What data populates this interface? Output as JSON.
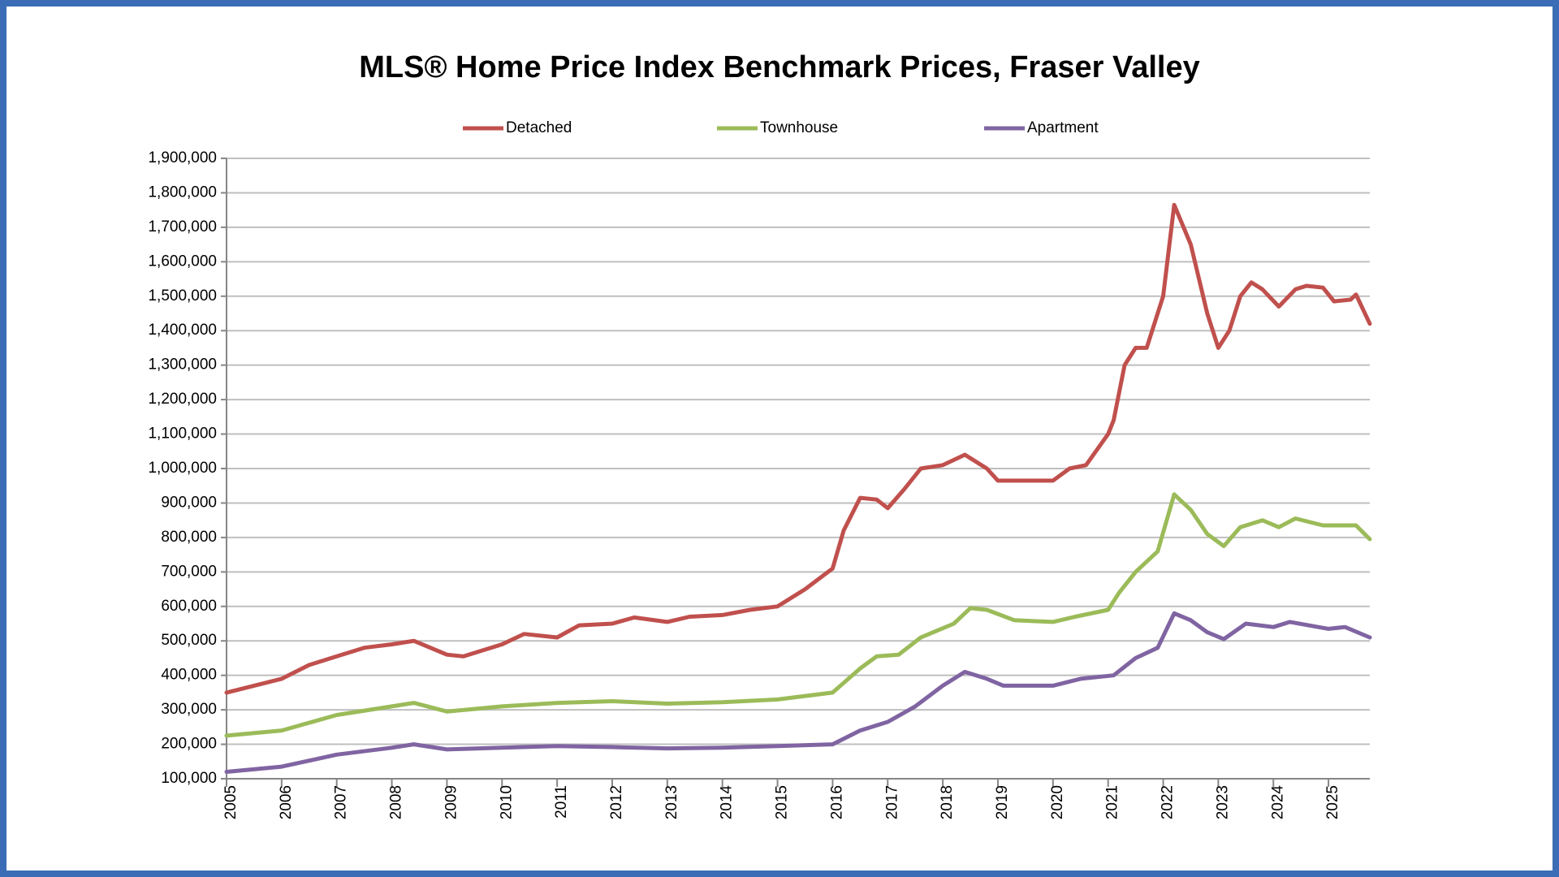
{
  "chart_data": {
    "type": "line",
    "title": "MLS® Home Price Index Benchmark Prices, Fraser Valley",
    "legend": "top",
    "grid": true,
    "xlim": [
      2005,
      2025.75
    ],
    "xticks": [
      2005,
      2006,
      2007,
      2008,
      2009,
      2010,
      2011,
      2012,
      2013,
      2014,
      2015,
      2016,
      2017,
      2018,
      2019,
      2020,
      2021,
      2022,
      2023,
      2024,
      2025
    ],
    "ylim": [
      100000,
      1900000
    ],
    "yticks": [
      {
        "value": 100000,
        "label": "100,000"
      },
      {
        "value": 200000,
        "label": "200,000"
      },
      {
        "value": 300000,
        "label": "300,000"
      },
      {
        "value": 400000,
        "label": "400,000"
      },
      {
        "value": 500000,
        "label": "500,000"
      },
      {
        "value": 600000,
        "label": "600,000"
      },
      {
        "value": 700000,
        "label": "700,000"
      },
      {
        "value": 800000,
        "label": "800,000"
      },
      {
        "value": 900000,
        "label": "900,000"
      },
      {
        "value": 1000000,
        "label": "1,000,000"
      },
      {
        "value": 1100000,
        "label": "1,100,000"
      },
      {
        "value": 1200000,
        "label": "1,200,000"
      },
      {
        "value": 1300000,
        "label": "1,300,000"
      },
      {
        "value": 1400000,
        "label": "1,400,000"
      },
      {
        "value": 1500000,
        "label": "1,500,000"
      },
      {
        "value": 1600000,
        "label": "1,600,000"
      },
      {
        "value": 1700000,
        "label": "1,700,000"
      },
      {
        "value": 1800000,
        "label": "1,800,000"
      },
      {
        "value": 1900000,
        "label": "1,900,000"
      }
    ],
    "series": [
      {
        "name": "Detached",
        "color": "#c0504d",
        "x": [
          2005,
          2006,
          2006.5,
          2007,
          2007.5,
          2008,
          2008.4,
          2009,
          2009.3,
          2010,
          2010.4,
          2011,
          2011.4,
          2012,
          2012.4,
          2013,
          2013.4,
          2014,
          2014.5,
          2015,
          2015.5,
          2016,
          2016.2,
          2016.5,
          2016.8,
          2017,
          2017.3,
          2017.6,
          2018,
          2018.4,
          2018.8,
          2019,
          2019.5,
          2020,
          2020.3,
          2020.6,
          2021,
          2021.1,
          2021.3,
          2021.5,
          2021.7,
          2022,
          2022.2,
          2022.5,
          2022.8,
          2023,
          2023.2,
          2023.4,
          2023.6,
          2023.8,
          2024.1,
          2024.4,
          2024.6,
          2024.9,
          2025.1,
          2025.4,
          2025.5,
          2025.75
        ],
        "values": [
          350000,
          390000,
          430000,
          455000,
          480000,
          490000,
          500000,
          460000,
          455000,
          490000,
          520000,
          510000,
          545000,
          550000,
          568000,
          555000,
          570000,
          575000,
          590000,
          600000,
          650000,
          710000,
          820000,
          915000,
          910000,
          885000,
          940000,
          1000000,
          1010000,
          1040000,
          1000000,
          965000,
          965000,
          965000,
          1000000,
          1010000,
          1100000,
          1140000,
          1300000,
          1350000,
          1350000,
          1500000,
          1765000,
          1650000,
          1450000,
          1350000,
          1400000,
          1500000,
          1540000,
          1520000,
          1470000,
          1520000,
          1530000,
          1525000,
          1485000,
          1490000,
          1505000,
          1420000
        ]
      },
      {
        "name": "Townhouse",
        "color": "#9bbb59",
        "x": [
          2005,
          2006,
          2007,
          2008,
          2008.4,
          2009,
          2010,
          2011,
          2012,
          2013,
          2014,
          2015,
          2016,
          2016.5,
          2016.8,
          2017.2,
          2017.6,
          2018.2,
          2018.5,
          2018.8,
          2019.3,
          2020,
          2020.4,
          2021,
          2021.2,
          2021.5,
          2021.9,
          2022.2,
          2022.5,
          2022.8,
          2023.1,
          2023.4,
          2023.8,
          2024.1,
          2024.4,
          2024.9,
          2025.5,
          2025.75
        ],
        "values": [
          225000,
          240000,
          285000,
          310000,
          320000,
          295000,
          310000,
          320000,
          325000,
          318000,
          322000,
          330000,
          350000,
          420000,
          455000,
          460000,
          510000,
          550000,
          595000,
          590000,
          560000,
          555000,
          570000,
          590000,
          640000,
          700000,
          760000,
          925000,
          880000,
          810000,
          775000,
          830000,
          850000,
          830000,
          855000,
          835000,
          835000,
          795000
        ]
      },
      {
        "name": "Apartment",
        "color": "#8064a2",
        "x": [
          2005,
          2006,
          2007,
          2008,
          2008.4,
          2009,
          2010,
          2011,
          2012,
          2013,
          2014,
          2015,
          2016,
          2016.5,
          2017,
          2017.5,
          2018,
          2018.4,
          2018.8,
          2019.1,
          2020,
          2020.5,
          2021.1,
          2021.5,
          2021.9,
          2022.2,
          2022.5,
          2022.8,
          2023.1,
          2023.5,
          2024,
          2024.3,
          2025,
          2025.3,
          2025.75
        ],
        "values": [
          120000,
          135000,
          170000,
          190000,
          200000,
          185000,
          190000,
          195000,
          192000,
          188000,
          190000,
          195000,
          200000,
          240000,
          265000,
          310000,
          370000,
          410000,
          390000,
          370000,
          370000,
          390000,
          400000,
          450000,
          480000,
          580000,
          560000,
          525000,
          505000,
          550000,
          540000,
          555000,
          535000,
          540000,
          510000
        ]
      }
    ]
  }
}
